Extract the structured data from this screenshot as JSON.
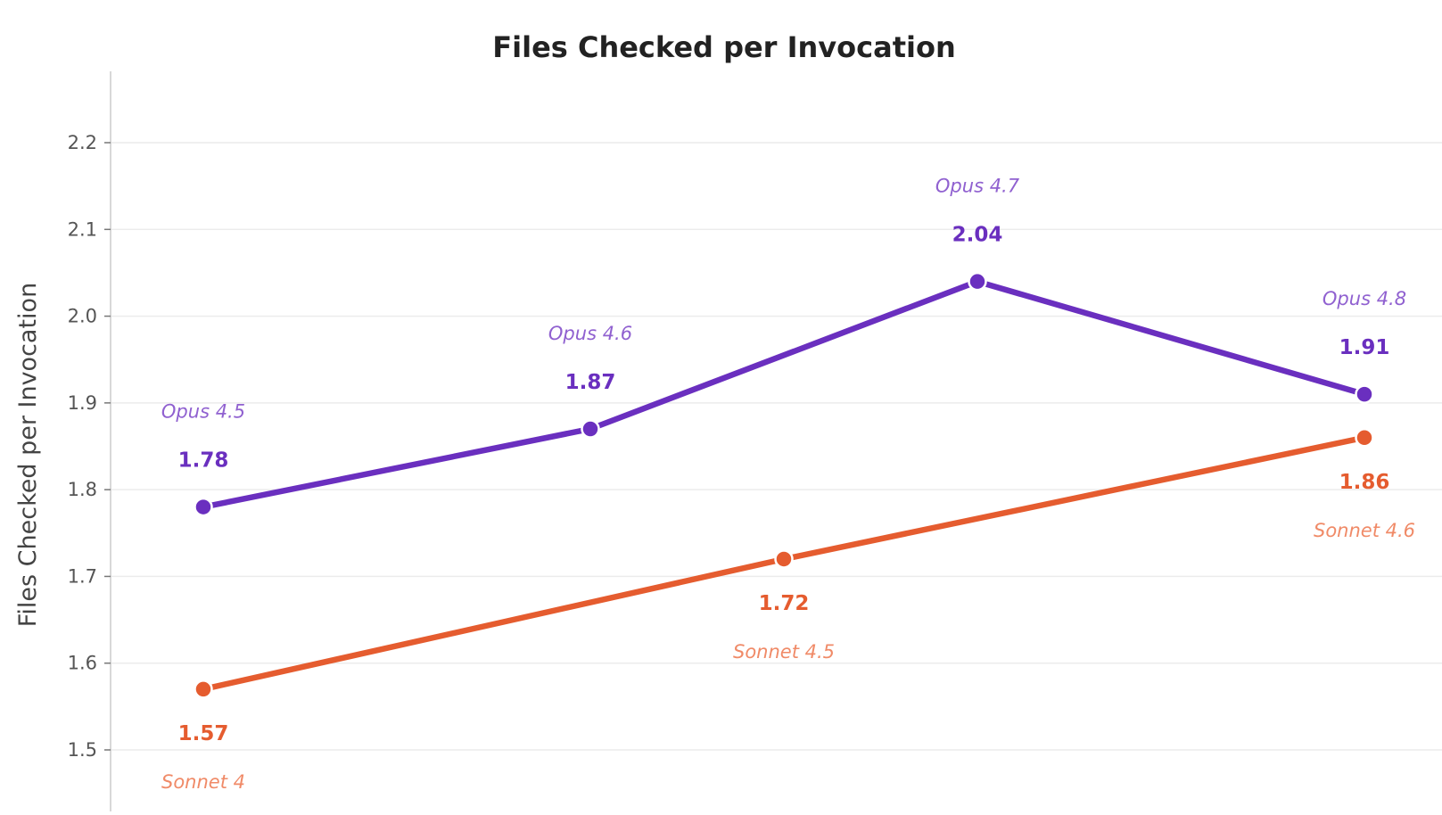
{
  "chart_data": {
    "type": "line",
    "title": "Files Checked per Invocation",
    "xlabel": "",
    "ylabel": "Files Checked per Invocation",
    "ylim": [
      1.45,
      2.3
    ],
    "yticks": [
      "1.5",
      "1.6",
      "1.7",
      "1.8",
      "1.9",
      "2.0",
      "2.1",
      "2.2"
    ],
    "grid": true,
    "legend": "none",
    "series": [
      {
        "key": "opus",
        "color": "#6a2fbf",
        "label_color": "#9061d0",
        "label_position": "above",
        "points": [
          {
            "x": 0,
            "y": 1.78,
            "value_label": "1.78",
            "name": "Opus 4.5"
          },
          {
            "x": 2,
            "y": 1.87,
            "value_label": "1.87",
            "name": "Opus 4.6"
          },
          {
            "x": 4,
            "y": 2.04,
            "value_label": "2.04",
            "name": "Opus 4.7"
          },
          {
            "x": 6,
            "y": 1.91,
            "value_label": "1.91",
            "name": "Opus 4.8"
          }
        ]
      },
      {
        "key": "sonnet",
        "color": "#e55c2f",
        "label_color": "#f08a67",
        "label_position": "below",
        "points": [
          {
            "x": 0,
            "y": 1.57,
            "value_label": "1.57",
            "name": "Sonnet 4"
          },
          {
            "x": 3,
            "y": 1.72,
            "value_label": "1.72",
            "name": "Sonnet 4.5"
          },
          {
            "x": 6,
            "y": 1.86,
            "value_label": "1.86",
            "name": "Sonnet 4.6"
          }
        ]
      }
    ]
  }
}
